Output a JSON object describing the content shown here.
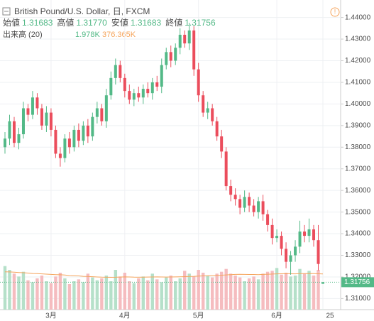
{
  "chart_data": {
    "type": "candlestick",
    "title": "British Pound/U.S. Dollar, 日, FXCM",
    "ohlc_header": [
      {
        "label": "始値",
        "value": "1.31683"
      },
      {
        "label": "高値",
        "value": "1.31770"
      },
      {
        "label": "安値",
        "value": "1.31683"
      },
      {
        "label": "終値",
        "value": "1.31756"
      }
    ],
    "volume_title": "出来高 (20)",
    "volume_label": "1.978K",
    "volume_ma_label": "376.365K",
    "last_price_label": "1.31756",
    "categories": [
      null,
      null,
      null,
      null,
      null,
      null,
      null,
      null,
      null,
      null,
      "3月",
      null,
      null,
      null,
      null,
      null,
      null,
      null,
      null,
      null,
      null,
      null,
      null,
      null,
      null,
      null,
      "4月",
      null,
      null,
      null,
      null,
      null,
      null,
      null,
      null,
      null,
      null,
      null,
      null,
      null,
      null,
      null,
      "5月",
      null,
      null,
      null,
      null,
      null,
      null,
      null,
      null,
      null,
      null,
      null,
      null,
      null,
      null,
      null,
      null,
      "6月",
      null,
      null,
      null,
      null,
      null,
      null,
      null,
      null,
      null,
      "25"
    ],
    "open": [
      1.38,
      1.384,
      1.392,
      1.382,
      1.386,
      1.398,
      1.395,
      1.403,
      1.398,
      1.39,
      1.396,
      1.388,
      1.377,
      1.375,
      1.384,
      1.38,
      1.388,
      1.383,
      1.39,
      1.385,
      1.394,
      1.398,
      1.392,
      1.404,
      1.412,
      1.418,
      1.412,
      1.406,
      1.402,
      1.405,
      1.403,
      1.407,
      1.405,
      1.41,
      1.408,
      1.418,
      1.424,
      1.42,
      1.426,
      1.432,
      1.428,
      1.434,
      1.416,
      1.404,
      1.396,
      1.398,
      1.392,
      1.385,
      1.378,
      1.362,
      1.358,
      1.356,
      1.352,
      1.357,
      1.353,
      1.35,
      1.355,
      1.349,
      1.344,
      1.338,
      1.339,
      1.333,
      1.327,
      1.33,
      1.334,
      1.341,
      1.339,
      1.342,
      1.337,
      1.31683
    ],
    "high": [
      1.387,
      1.395,
      1.394,
      1.389,
      1.401,
      1.4,
      1.406,
      1.405,
      1.4,
      1.399,
      1.398,
      1.39,
      1.38,
      1.386,
      1.387,
      1.39,
      1.391,
      1.392,
      1.393,
      1.396,
      1.401,
      1.4,
      1.407,
      1.415,
      1.421,
      1.42,
      1.414,
      1.409,
      1.407,
      1.408,
      1.409,
      1.41,
      1.412,
      1.413,
      1.421,
      1.426,
      1.427,
      1.428,
      1.435,
      1.434,
      1.4375,
      1.436,
      1.419,
      1.406,
      1.401,
      1.4,
      1.394,
      1.388,
      1.38,
      1.365,
      1.361,
      1.358,
      1.36,
      1.359,
      1.356,
      1.357,
      1.358,
      1.351,
      1.347,
      1.342,
      1.341,
      1.336,
      1.332,
      1.337,
      1.346,
      1.344,
      1.347,
      1.344,
      1.344,
      1.3177
    ],
    "low": [
      1.377,
      1.381,
      1.38,
      1.379,
      1.384,
      1.392,
      1.393,
      1.395,
      1.388,
      1.387,
      1.385,
      1.375,
      1.371,
      1.373,
      1.377,
      1.378,
      1.38,
      1.381,
      1.382,
      1.383,
      1.391,
      1.39,
      1.389,
      1.402,
      1.409,
      1.41,
      1.403,
      1.4,
      1.399,
      1.401,
      1.4,
      1.403,
      1.402,
      1.406,
      1.405,
      1.416,
      1.417,
      1.418,
      1.423,
      1.426,
      1.425,
      1.413,
      1.401,
      1.394,
      1.393,
      1.39,
      1.383,
      1.375,
      1.36,
      1.355,
      1.353,
      1.349,
      1.35,
      1.35,
      1.348,
      1.347,
      1.346,
      1.341,
      1.335,
      1.336,
      1.33,
      1.324,
      1.321,
      1.327,
      1.331,
      1.336,
      1.336,
      1.334,
      1.323,
      1.31683
    ],
    "close": [
      1.384,
      1.392,
      1.382,
      1.386,
      1.398,
      1.395,
      1.403,
      1.398,
      1.39,
      1.396,
      1.388,
      1.377,
      1.375,
      1.384,
      1.38,
      1.388,
      1.383,
      1.39,
      1.385,
      1.394,
      1.398,
      1.392,
      1.404,
      1.412,
      1.418,
      1.412,
      1.406,
      1.402,
      1.405,
      1.403,
      1.407,
      1.405,
      1.41,
      1.408,
      1.418,
      1.424,
      1.42,
      1.426,
      1.432,
      1.428,
      1.434,
      1.416,
      1.404,
      1.396,
      1.398,
      1.392,
      1.385,
      1.378,
      1.362,
      1.358,
      1.356,
      1.352,
      1.357,
      1.353,
      1.35,
      1.355,
      1.349,
      1.344,
      1.338,
      1.339,
      1.333,
      1.327,
      1.33,
      1.334,
      1.341,
      1.339,
      1.342,
      1.337,
      1.326,
      1.31756
    ],
    "volume": [
      460,
      420,
      380,
      350,
      400,
      310,
      290,
      330,
      360,
      300,
      280,
      350,
      390,
      330,
      270,
      300,
      320,
      290,
      380,
      340,
      310,
      330,
      360,
      300,
      420,
      350,
      390,
      300,
      280,
      330,
      350,
      310,
      380,
      320,
      290,
      340,
      360,
      300,
      330,
      410,
      380,
      350,
      420,
      390,
      360,
      340,
      380,
      400,
      430,
      380,
      360,
      340,
      300,
      330,
      350,
      320,
      380,
      400,
      410,
      440,
      370,
      390,
      350,
      360,
      430,
      380,
      410,
      360,
      420,
      1.978
    ],
    "volume_ma": [
      400,
      398,
      395,
      392,
      390,
      386,
      382,
      380,
      378,
      375,
      372,
      370,
      368,
      365,
      360,
      358,
      356,
      352,
      350,
      348,
      345,
      343,
      342,
      341,
      342,
      344,
      346,
      345,
      343,
      342,
      343,
      344,
      345,
      346,
      345,
      344,
      345,
      346,
      347,
      349,
      351,
      352,
      354,
      356,
      358,
      360,
      362,
      364,
      367,
      370,
      372,
      373,
      372,
      371,
      371,
      370,
      372,
      374,
      376,
      378,
      379,
      380,
      379,
      378,
      380,
      381,
      382,
      381,
      379,
      376.365
    ],
    "up_color": "#53b987",
    "down_color": "#eb4d5c",
    "up_volume_color": "#b5e0c9",
    "down_volume_color": "#f5bcbf",
    "ma_color": "#f5a45b",
    "ylim": [
      1.3075,
      1.4425
    ],
    "yticks": [
      {
        "value": 1.44,
        "label": "1.44000"
      },
      {
        "value": 1.43,
        "label": "1.43000"
      },
      {
        "value": 1.42,
        "label": "1.42000"
      },
      {
        "value": 1.41,
        "label": "1.41000"
      },
      {
        "value": 1.4,
        "label": "1.40000"
      },
      {
        "value": 1.39,
        "label": "1.39000"
      },
      {
        "value": 1.38,
        "label": "1.38000"
      },
      {
        "value": 1.37,
        "label": "1.37000"
      },
      {
        "value": 1.36,
        "label": "1.36000"
      },
      {
        "value": 1.35,
        "label": "1.35000"
      },
      {
        "value": 1.34,
        "label": "1.34000"
      },
      {
        "value": 1.33,
        "label": "1.33000"
      },
      {
        "value": 1.32,
        "label": "1.32000"
      },
      {
        "value": 1.31,
        "label": "1.31000"
      }
    ],
    "volume_lim": [
      0,
      600
    ],
    "grid": true
  }
}
